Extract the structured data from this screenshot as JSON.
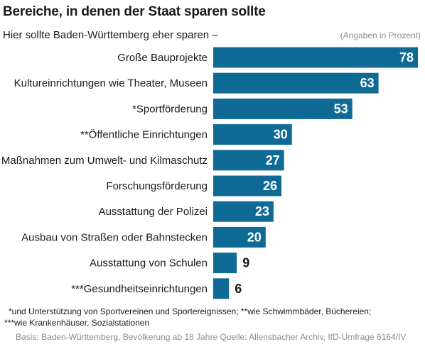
{
  "chart_data": {
    "type": "bar",
    "orientation": "horizontal",
    "title": "Bereiche, in denen der Staat sparen sollte",
    "subtitle": "Hier sollte Baden-Württemberg eher sparen –",
    "unit_note": "(Angaben in Prozent)",
    "categories": [
      "Große Bauprojekte",
      "Kultureinrichtungen wie Theater, Museen",
      "*Sportförderung",
      "**Öffentliche Einrichtungen",
      "Maßnahmen zum Umwelt- und Kilmaschutz",
      "Forschungsförderung",
      "Ausstattung der Polizei",
      "Ausbau von Straßen oder Bahnstecken",
      "Ausstattung von Schulen",
      "***Gesundheitseinrichtungen"
    ],
    "values": [
      78,
      63,
      53,
      30,
      27,
      26,
      23,
      20,
      9,
      6
    ],
    "xlim": [
      0,
      78
    ],
    "grid": false,
    "bar_color": "#0f6b96",
    "footnotes": [
      "*und Unterstützung von Sportvereinen und Sportereignissen; **wie Schwimmbäder, Büchereien;",
      "***wie Krankenhäuser, Sozialstationen"
    ],
    "source": "Basis: Baden-Württemberg, Bevölkerung ab 18 Jahre Quelle: Allensbacher Archiv, IfD-Umfrage 6164/IV"
  }
}
